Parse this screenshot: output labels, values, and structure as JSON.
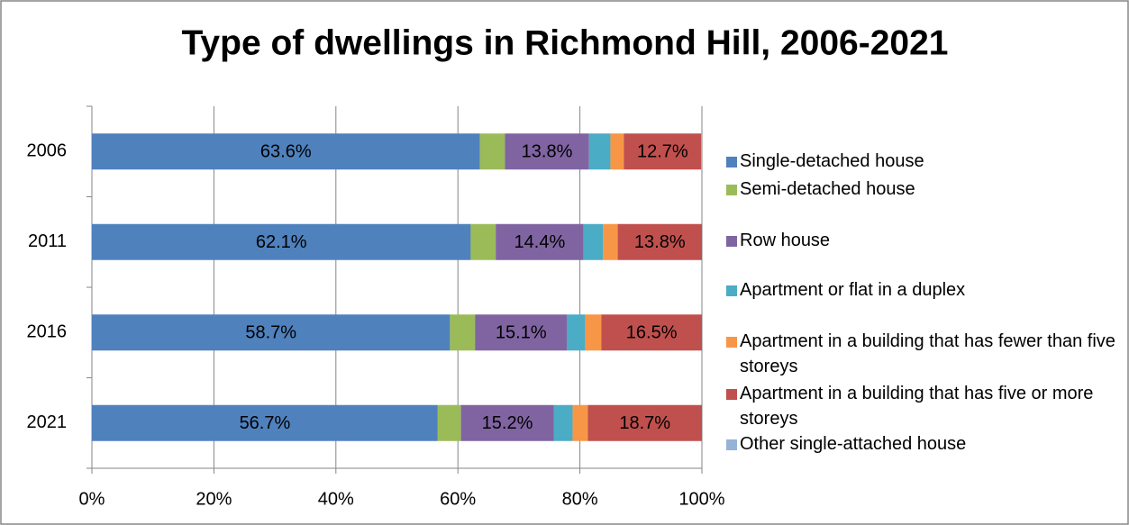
{
  "chart_data": {
    "type": "stacked-bar-horizontal",
    "title": "Type of dwellings in Richmond Hill, 2006-2021",
    "categories": [
      "2006",
      "2011",
      "2016",
      "2021"
    ],
    "series": [
      {
        "name": "Single-detached house",
        "color": "#4f81bd",
        "values": [
          63.6,
          62.1,
          58.7,
          56.7
        ],
        "value_labels": [
          "63.6%",
          "62.1%",
          "58.7%",
          "56.7%"
        ]
      },
      {
        "name": "Semi-detached house",
        "color": "#9bbb59",
        "values": [
          4.1,
          4.1,
          4.1,
          3.8
        ]
      },
      {
        "name": "Row house",
        "color": "#8064a2",
        "values": [
          13.8,
          14.4,
          15.1,
          15.2
        ],
        "value_labels": [
          "13.8%",
          "14.4%",
          "15.1%",
          "15.2%"
        ]
      },
      {
        "name": "Apartment or flat in a duplex",
        "color": "#4bacc6",
        "values": [
          3.5,
          3.2,
          3.0,
          3.1
        ]
      },
      {
        "name": "Apartment in a building that has fewer than five storeys",
        "color": "#f79646",
        "values": [
          2.2,
          2.4,
          2.6,
          2.5
        ]
      },
      {
        "name": "Apartment in a building that has five or more storeys",
        "color": "#c0504d",
        "values": [
          12.7,
          13.8,
          16.5,
          18.7
        ],
        "value_labels": [
          "12.7%",
          "13.8%",
          "16.5%",
          "18.7%"
        ]
      },
      {
        "name": "Other single-attached house",
        "color": "#95b3d7",
        "values": [
          0.1,
          0,
          0,
          0
        ]
      }
    ],
    "xlim": [
      0,
      100
    ],
    "xticks": [
      {
        "value": 0,
        "label": "0%"
      },
      {
        "value": 20,
        "label": "20%"
      },
      {
        "value": 40,
        "label": "40%"
      },
      {
        "value": 60,
        "label": "60%"
      },
      {
        "value": 80,
        "label": "80%"
      },
      {
        "value": 100,
        "label": "100%"
      }
    ],
    "grid": true,
    "legend": "right"
  }
}
